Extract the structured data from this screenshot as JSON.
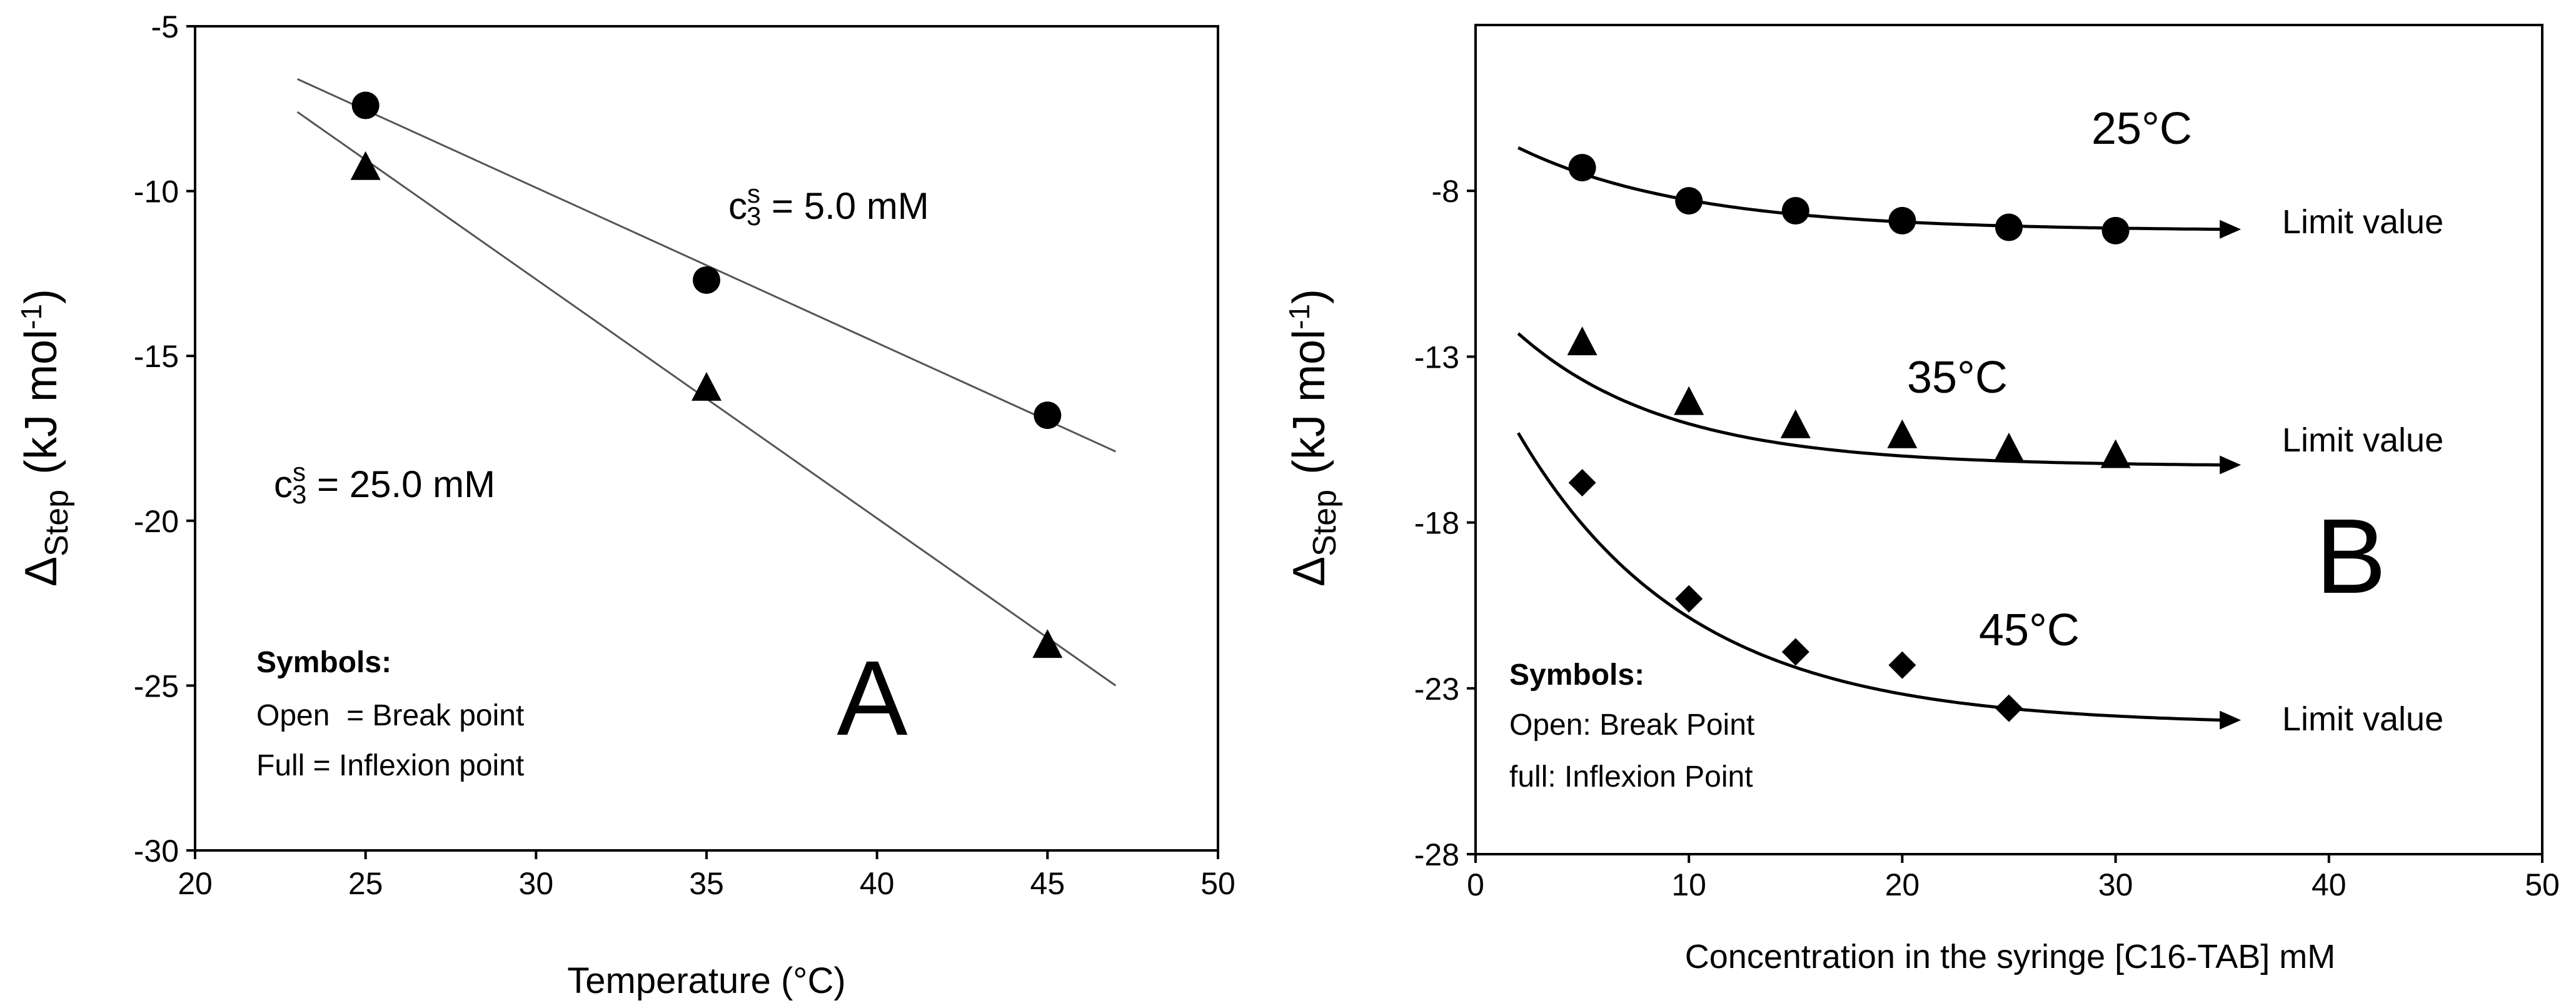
{
  "chart_data": [
    {
      "panel": "A",
      "type": "scatter",
      "panel_label": "A",
      "xlabel": "Temperature (°C)",
      "ylabel": {
        "main": "Δ",
        "sub": "Step",
        "unit": "(kJ mol",
        "sup": "-1",
        "close": ")"
      },
      "xlim": [
        20,
        50
      ],
      "ylim": [
        -30,
        -5
      ],
      "xticks": [
        20,
        25,
        30,
        35,
        40,
        45,
        50
      ],
      "yticks": [
        -5,
        -10,
        -15,
        -20,
        -25,
        -30
      ],
      "series": [
        {
          "name": "c s3 = 5.0 mM",
          "marker": "circle",
          "x": [
            25,
            35,
            45
          ],
          "y": [
            -7.4,
            -12.7,
            -16.8
          ],
          "fit_line": {
            "x": [
              23,
              47
            ],
            "y": [
              -6.6,
              -17.9
            ]
          },
          "label": {
            "prefix": "c",
            "sup": "s",
            "sub": "3",
            "text": " = 5.0 mM"
          }
        },
        {
          "name": "c s3 = 25.0 mM",
          "marker": "triangle",
          "x": [
            25,
            35,
            45
          ],
          "y": [
            -9.3,
            -16.0,
            -23.8
          ],
          "fit_line": {
            "x": [
              23,
              47
            ],
            "y": [
              -7.6,
              -25.0
            ]
          },
          "label": {
            "prefix": "c",
            "sup": "s",
            "sub": "3",
            "text": " = 25.0 mM"
          }
        }
      ],
      "legend_notes": [
        "Symbols:",
        "Open  = Break point",
        "Full = Inflexion point"
      ]
    },
    {
      "panel": "B",
      "type": "scatter",
      "panel_label": "B",
      "xlabel": "Concentration in the syringe [C16-TAB] mM",
      "ylabel": {
        "main": "Δ",
        "sub": "Step",
        "unit": "(kJ mol",
        "sup": "-1",
        "close": ")"
      },
      "xlim": [
        0,
        50
      ],
      "ylim": [
        -28,
        -3
      ],
      "xticks": [
        0,
        10,
        20,
        30,
        40,
        50
      ],
      "yticks": [
        -8,
        -13,
        -18,
        -23,
        -28
      ],
      "series": [
        {
          "name": "25°C",
          "marker": "circle",
          "x": [
            5,
            10,
            15,
            20,
            25,
            30
          ],
          "y": [
            -7.3,
            -8.3,
            -8.6,
            -8.9,
            -9.1,
            -9.2
          ],
          "curve": {
            "start": [
              2,
              -6.7
            ],
            "limit": -9.2,
            "end_x": 35,
            "decay": 8
          },
          "temp_label": "25°C",
          "limit_label": "Limit value"
        },
        {
          "name": "35°C",
          "marker": "triangle",
          "x": [
            5,
            10,
            15,
            20,
            25,
            30
          ],
          "y": [
            -12.6,
            -14.4,
            -15.1,
            -15.4,
            -15.8,
            -16.0
          ],
          "curve": {
            "start": [
              2,
              -12.3
            ],
            "limit": -16.3,
            "end_x": 35,
            "decay": 7
          },
          "temp_label": "35°C",
          "limit_label": "Limit value"
        },
        {
          "name": "45°C",
          "marker": "diamond",
          "x": [
            5,
            10,
            15,
            20,
            25
          ],
          "y": [
            -16.8,
            -20.3,
            -21.9,
            -22.3,
            -23.6
          ],
          "curve": {
            "start": [
              2,
              -15.3
            ],
            "limit": -24.1,
            "end_x": 35,
            "decay": 8
          },
          "temp_label": "45°C",
          "limit_label": "Limit value"
        }
      ],
      "legend_notes": [
        "Symbols:",
        "Open: Break Point",
        "full: Inflexion Point"
      ]
    }
  ]
}
